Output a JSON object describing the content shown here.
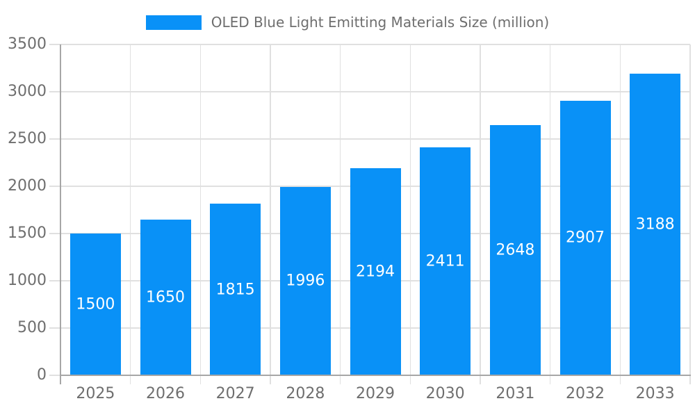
{
  "chart_data": {
    "type": "bar",
    "title": "OLED Blue Light Emitting Materials Size (million)",
    "categories": [
      "2025",
      "2026",
      "2027",
      "2028",
      "2029",
      "2030",
      "2031",
      "2032",
      "2033"
    ],
    "values": [
      1500,
      1650,
      1815,
      1996,
      2194,
      2411,
      2648,
      2907,
      3188
    ],
    "xlabel": "",
    "ylabel": "",
    "ylim": [
      0,
      3500
    ],
    "yticks": [
      0,
      500,
      1000,
      1500,
      2000,
      2500,
      3000,
      3500
    ],
    "grid": true,
    "legend_position": "top-center",
    "bar_color": "#0991f7",
    "bar_label_color": "#ffffff",
    "grid_color": "#e0e0e0",
    "axis_line_color": "#a6a6a6",
    "axis_text_color": "#6e6e6e"
  }
}
